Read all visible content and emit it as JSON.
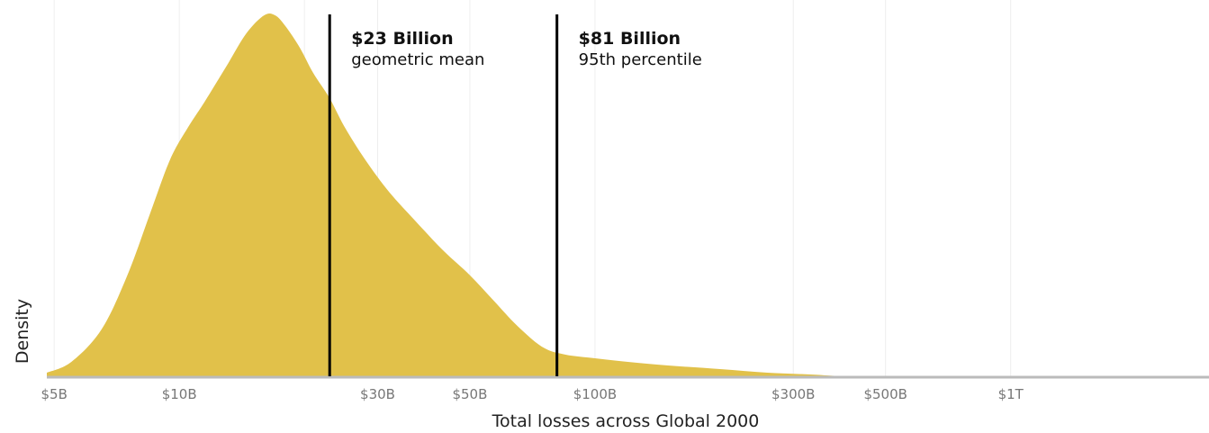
{
  "chart_data": {
    "type": "area",
    "xscale": "log",
    "xlabel": "Total losses across Global 2000",
    "ylabel": "Density",
    "xlim": [
      4800000000,
      3000000000000
    ],
    "grid": "vertical",
    "fill_color": "#E1C14A",
    "line_color": "#000000",
    "axis_color": "#BBBBBB",
    "grid_color": "#EEEEEE",
    "ticks": [
      {
        "value": 5000000000,
        "label": "$5B"
      },
      {
        "value": 10000000000,
        "label": "$10B"
      },
      {
        "value": 30000000000,
        "label": "$30B"
      },
      {
        "value": 50000000000,
        "label": "$50B"
      },
      {
        "value": 100000000000,
        "label": "$100B"
      },
      {
        "value": 300000000000,
        "label": "$300B"
      },
      {
        "value": 500000000000,
        "label": "$500B"
      },
      {
        "value": 1000000000000,
        "label": "$1T"
      }
    ],
    "gridlines": [
      5000000000,
      10000000000,
      20000000000,
      30000000000,
      50000000000,
      100000000000,
      300000000000,
      500000000000,
      1000000000000
    ],
    "density": {
      "x": [
        4800000000,
        5500000000,
        6500000000,
        7500000000,
        8500000000,
        9500000000,
        10500000000,
        11500000000,
        13000000000,
        14500000000,
        16000000000,
        17000000000,
        18000000000,
        19500000000,
        21000000000,
        23000000000,
        25000000000,
        28000000000,
        32000000000,
        37000000000,
        43000000000,
        50000000000,
        57000000000,
        65000000000,
        75000000000,
        85000000000,
        100000000000,
        120000000000,
        150000000000,
        200000000000,
        260000000000,
        330000000000,
        400000000000,
        500000000000,
        3000000000000
      ],
      "y": [
        0.01,
        0.04,
        0.13,
        0.28,
        0.45,
        0.6,
        0.69,
        0.76,
        0.86,
        0.95,
        1.0,
        1.0,
        0.97,
        0.91,
        0.84,
        0.77,
        0.69,
        0.6,
        0.51,
        0.43,
        0.35,
        0.28,
        0.21,
        0.14,
        0.08,
        0.06,
        0.05,
        0.04,
        0.03,
        0.02,
        0.01,
        0.005,
        0.0,
        0.0,
        0.0
      ]
    },
    "annotations": [
      {
        "x": 23000000000,
        "value": "$23 Billion",
        "label": "geometric mean"
      },
      {
        "x": 81000000000,
        "value": "$81 Billion",
        "label": "95th percentile"
      }
    ]
  }
}
